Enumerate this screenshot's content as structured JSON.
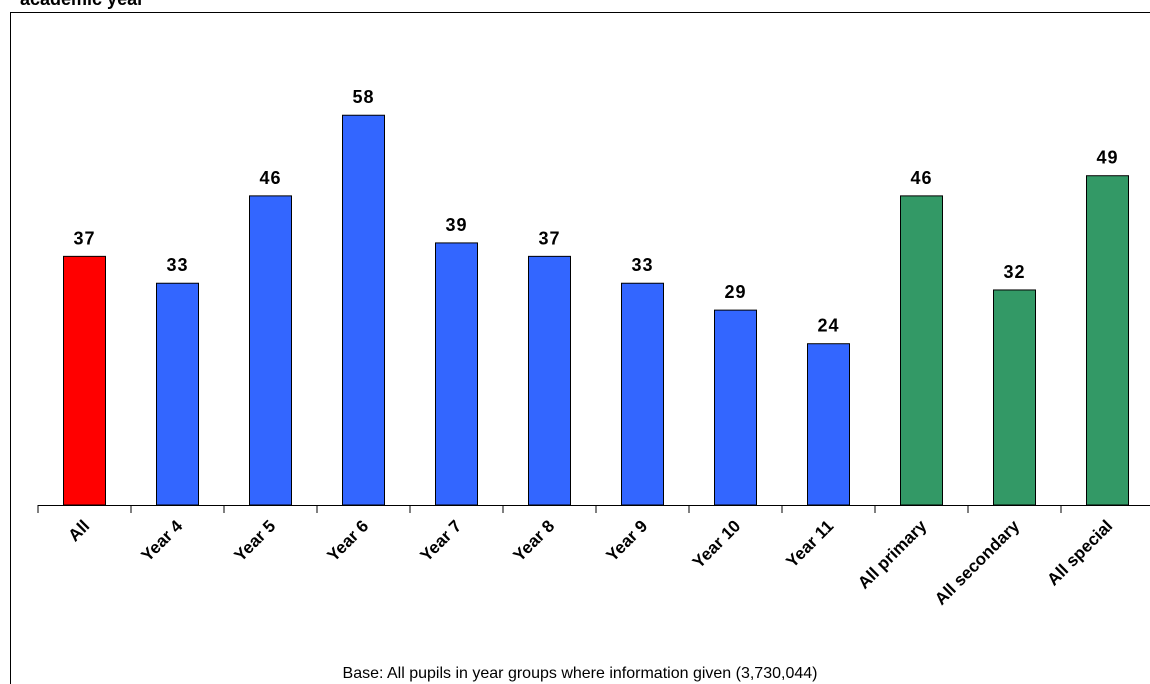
{
  "chart_data": {
    "type": "bar",
    "title": "academic year",
    "categories": [
      "All",
      "Year 4",
      "Year 5",
      "Year 6",
      "Year 7",
      "Year 8",
      "Year 9",
      "Year 10",
      "Year 11",
      "All primary",
      "All secondary",
      "All special"
    ],
    "values": [
      37,
      33,
      46,
      58,
      39,
      37,
      33,
      29,
      24,
      46,
      32,
      49
    ],
    "colors": [
      "#ff0000",
      "#3366ff",
      "#3366ff",
      "#3366ff",
      "#3366ff",
      "#3366ff",
      "#3366ff",
      "#3366ff",
      "#3366ff",
      "#339966",
      "#339966",
      "#339966"
    ],
    "note": "Base: All pupils in year groups where information given (3,730,044)"
  }
}
